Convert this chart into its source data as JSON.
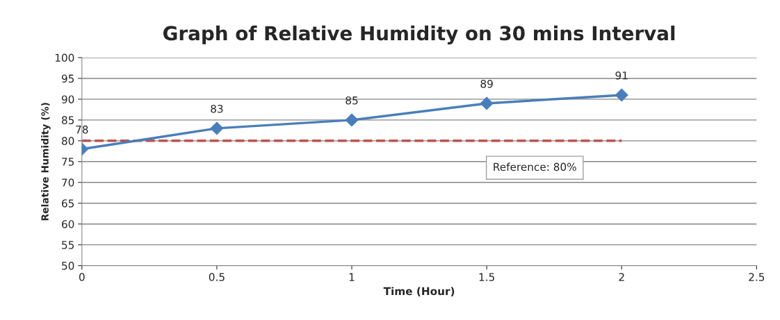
{
  "chart_data": {
    "type": "line",
    "title": "Graph of Relative Humidity on 30 mins Interval",
    "xlabel": "Time (Hour)",
    "ylabel": "Relative Humidity (%)",
    "x": [
      0,
      0.5,
      1,
      1.5,
      2
    ],
    "series": [
      {
        "color": "#4a7ebb",
        "values": [
          78,
          83,
          85,
          89,
          91
        ]
      }
    ],
    "xlim": [
      0,
      2.5
    ],
    "xticks": [
      0,
      0.5,
      1,
      1.5,
      2,
      2.5
    ],
    "ylim": [
      50,
      100
    ],
    "yticks": [
      50,
      55,
      60,
      65,
      70,
      75,
      80,
      85,
      90,
      95,
      100
    ],
    "ref_lines": [
      {
        "axis": "y",
        "value": 80,
        "label": "Reference: 80%",
        "color": "#c0504d",
        "line_style": "dashed"
      }
    ],
    "grid": "y",
    "marker": "diamond",
    "line_style": "solid",
    "data_labels": true,
    "legend": false
  }
}
